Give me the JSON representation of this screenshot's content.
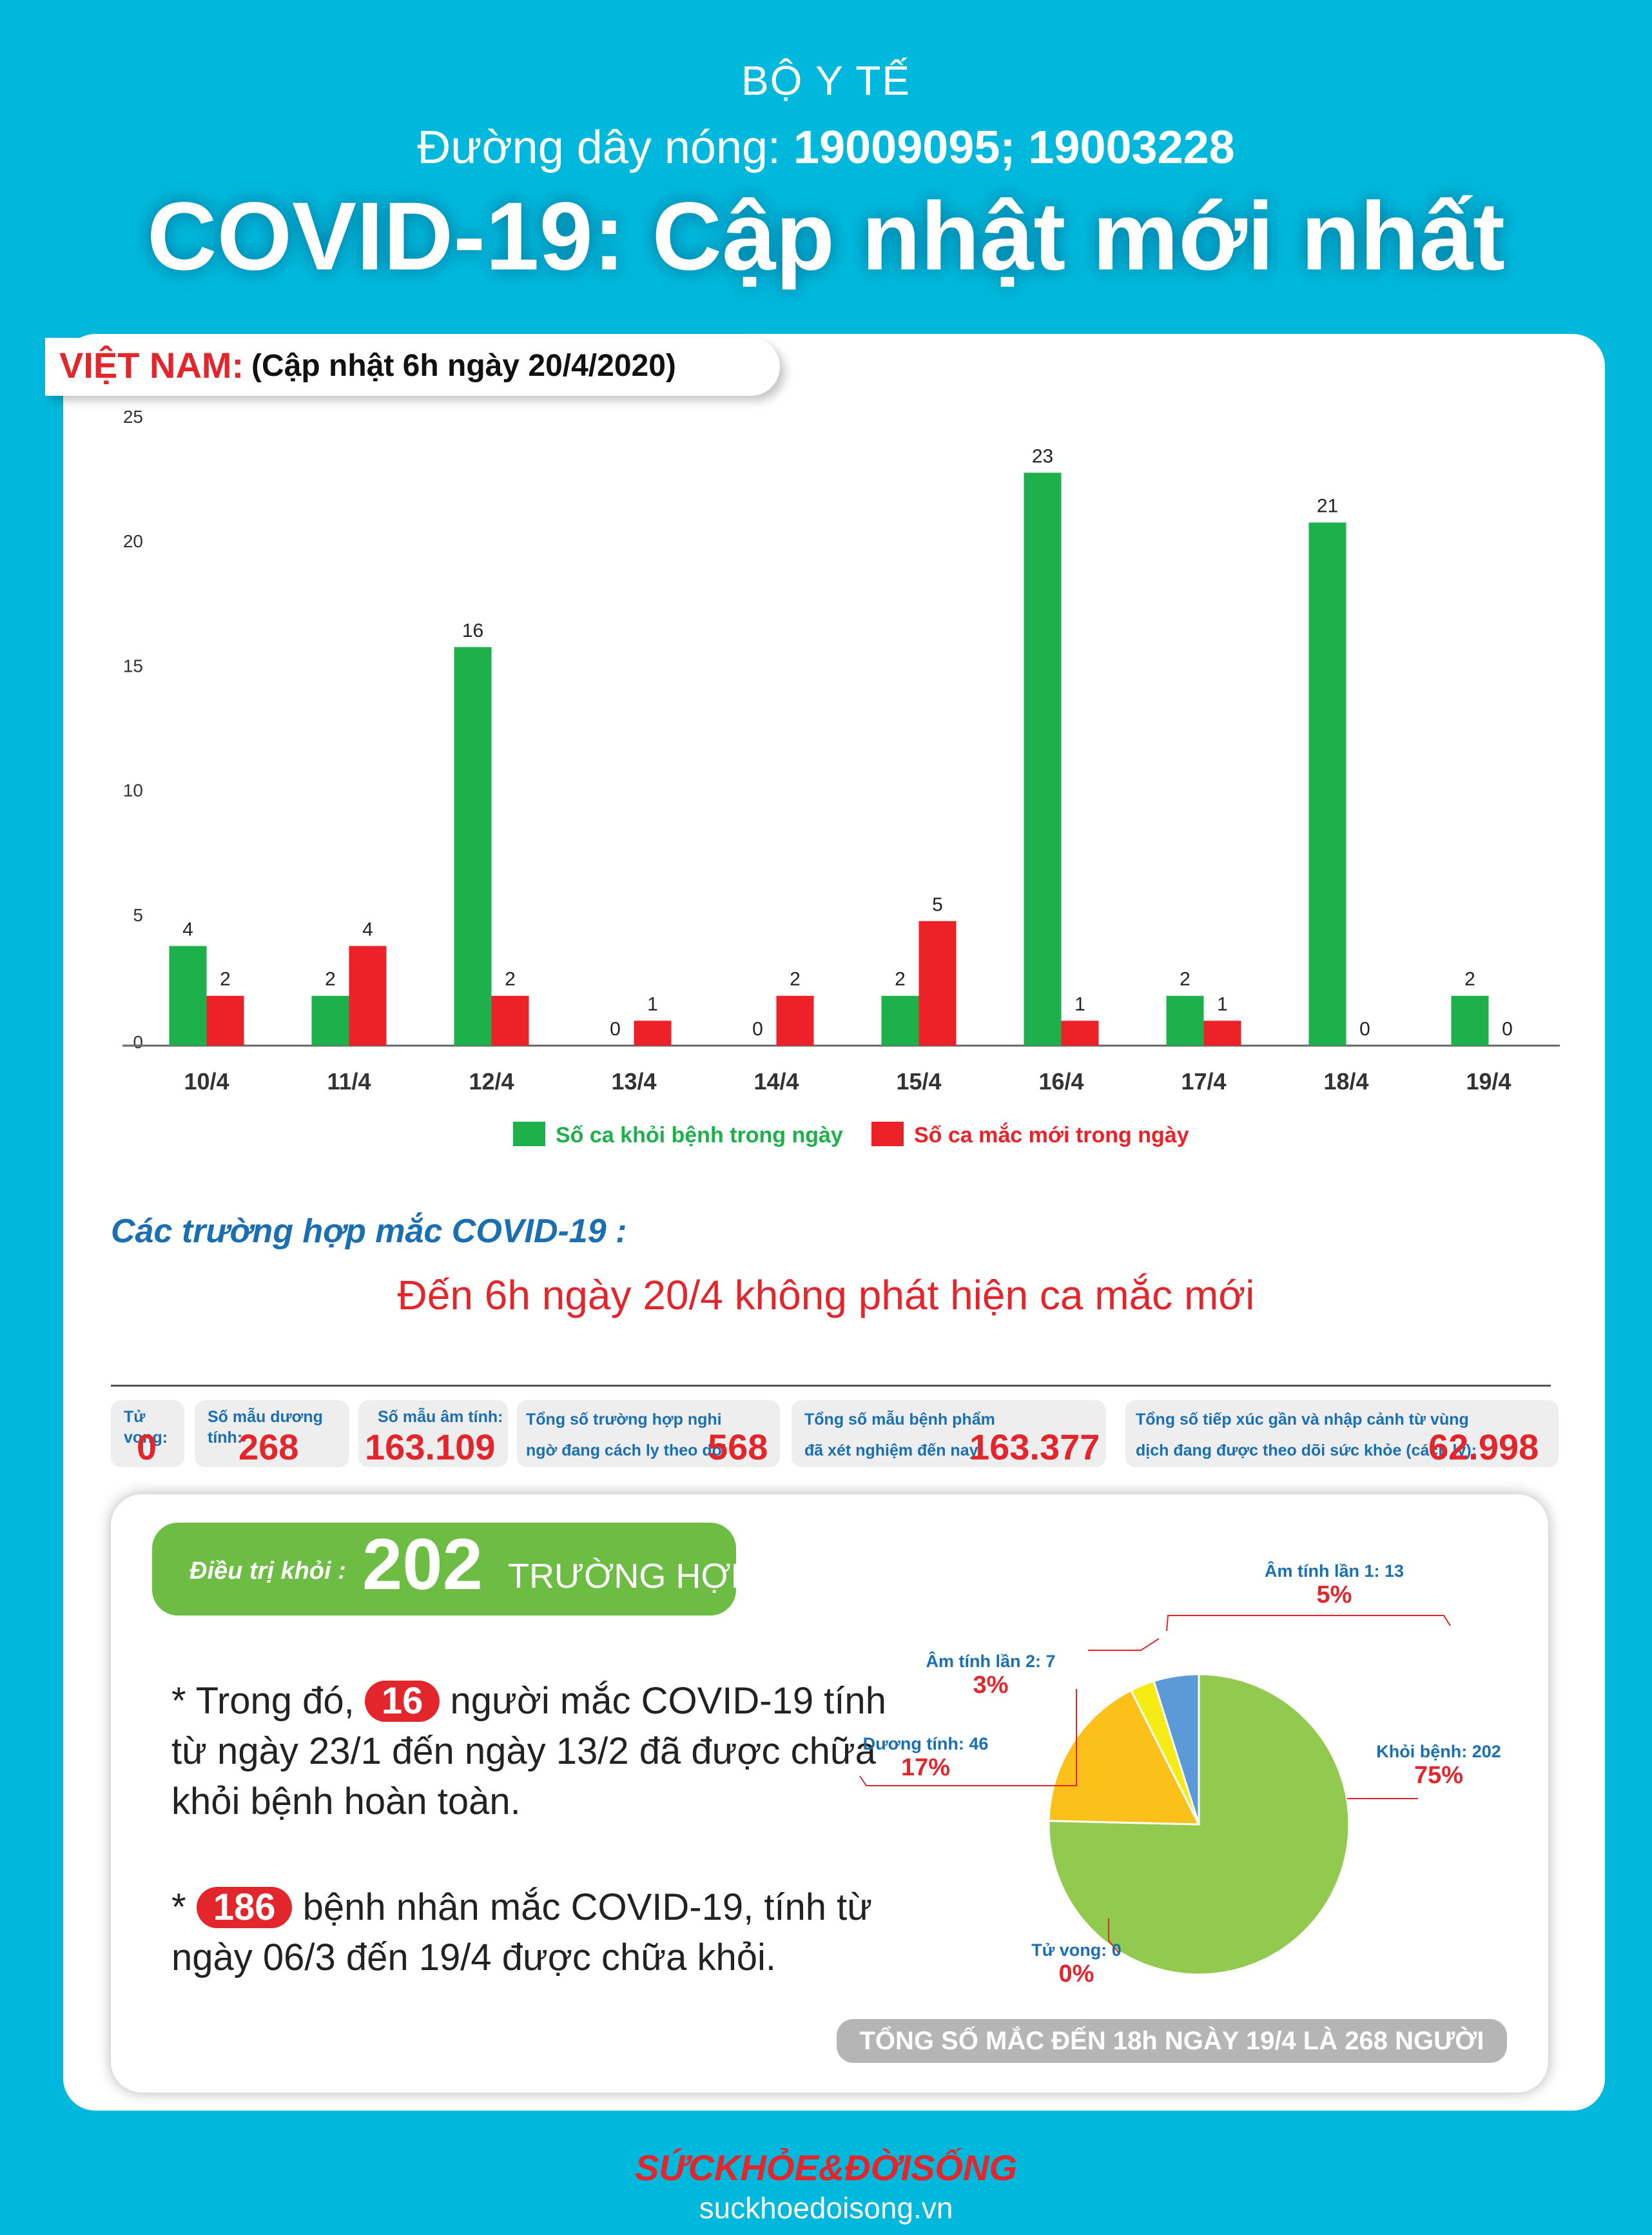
{
  "header": {
    "org": "BỘ Y TẾ",
    "hotline_label": "Đường dây nóng: ",
    "hotline_numbers": "19009095; 19003228",
    "headline": "COVID-19: Cập nhật mới nhất"
  },
  "update": {
    "country": "VIỆT NAM:",
    "date": "(Cập nhật 6h ngày 20/4/2020)"
  },
  "chart_data": [
    {
      "type": "bar",
      "categories": [
        "10/4",
        "11/4",
        "12/4",
        "13/4",
        "14/4",
        "15/4",
        "16/4",
        "17/4",
        "18/4",
        "19/4"
      ],
      "series": [
        {
          "name": "Số ca khỏi bệnh trong ngày",
          "color": "#1db04b",
          "values": [
            4,
            2,
            16,
            0,
            0,
            2,
            23,
            2,
            21,
            2
          ]
        },
        {
          "name": "Số ca mắc mới trong ngày",
          "color": "#ed2229",
          "values": [
            2,
            4,
            2,
            1,
            2,
            5,
            1,
            1,
            0,
            0
          ]
        }
      ],
      "yticks": [
        0,
        5,
        10,
        15,
        20,
        25
      ],
      "ylim": [
        0,
        25
      ],
      "legend": "bottom"
    },
    {
      "type": "pie",
      "slices": [
        {
          "label": "Khỏi bệnh: 202",
          "percent": "75%",
          "value": 202,
          "color": "#92c94f"
        },
        {
          "label": "Dương tính: 46",
          "percent": "17%",
          "value": 46,
          "color": "#fbc01a"
        },
        {
          "label": "Âm tính lần 2: 7",
          "percent": "3%",
          "value": 7,
          "color": "#f6eb14"
        },
        {
          "label": "Âm tính lần 1: 13",
          "percent": "5%",
          "value": 13,
          "color": "#5b9ad6"
        },
        {
          "label": "Tử vong: 0",
          "percent": "0%",
          "value": 0,
          "color": "#888888"
        }
      ]
    }
  ],
  "cases": {
    "heading": "Các trường hợp mắc COVID-19 :",
    "note": "Đến 6h ngày 20/4 không phát hiện ca mắc mới"
  },
  "stats": {
    "deaths_label": "Tử vong:",
    "deaths_value": "0",
    "positive_label": "Số mẫu dương tính:",
    "positive_value": "268",
    "negative_label": "Số mẫu âm tính:",
    "negative_value": "163.109",
    "suspected_label_1": "Tổng số trường hợp nghi",
    "suspected_label_2": "ngờ đang cách ly theo dõi :",
    "suspected_value": "568",
    "tested_label_1": "Tổng số mẫu bệnh phẩm",
    "tested_label_2": "đã xét nghiệm đến nay:",
    "tested_value": "163.377",
    "contacts_label_1": "Tổng số tiếp xúc gần và nhập cảnh từ vùng",
    "contacts_label_2": "dịch đang được theo dõi sức khỏe (cách ly):",
    "contacts_value": "62.998"
  },
  "recovered": {
    "label": "Điều trị khỏi :",
    "number": "202",
    "unit": "TRƯỜNG HỢP"
  },
  "notes": {
    "n1_prefix": "* Trong đó,",
    "n1_badge": "16",
    "n1_line1": "người mắc COVID-19 tính",
    "n1_line2": "từ ngày 23/1 đến ngày 13/2 đã được chữa",
    "n1_line3": "khỏi bệnh hoàn toàn.",
    "n2_prefix": "*",
    "n2_badge": "186",
    "n2_line1": "bệnh nhân  mắc COVID-19, tính từ",
    "n2_line2": "ngày 06/3 đến 19/4 được chữa khỏi."
  },
  "total_note": "TỔNG SỐ MẮC ĐẾN 18h NGÀY 19/4 LÀ 268 NGƯỜI",
  "brand": {
    "name": "SỨCKHỎE&ĐỜISỐNG",
    "url": "suckhoedoisong.vn"
  }
}
